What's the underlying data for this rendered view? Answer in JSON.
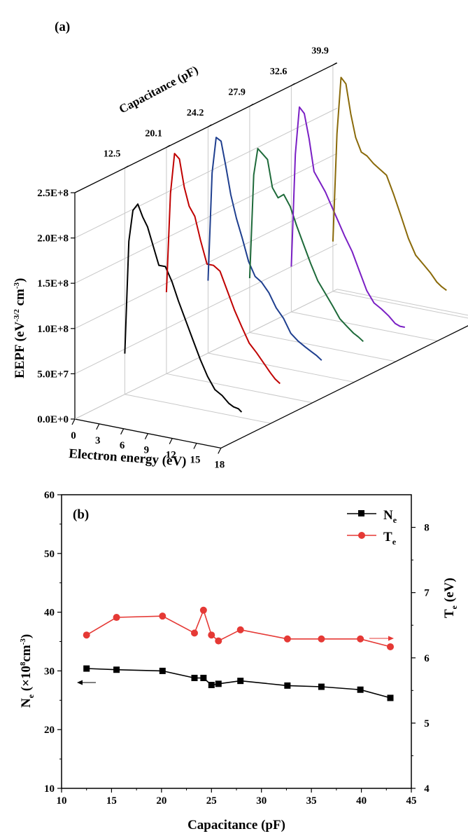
{
  "chart_data": [
    {
      "type": "line",
      "panel_label": "(a)",
      "projection": "3d-waterfall",
      "ylabel": "EEPF (eV-3/2 cm-3)",
      "ylabel_main": "EEPF (eV",
      "ylabel_sup1": "-3/2",
      "ylabel_mid": " cm",
      "ylabel_sup2": "-3",
      "ylabel_end": ")",
      "xlabel": "Electron energy (eV)",
      "zlabel": "Capacitance (pF)",
      "yticks": [
        "0.0E+0",
        "5.0E+7",
        "1.0E+8",
        "1.5E+8",
        "2.0E+8",
        "2.5E+8"
      ],
      "ytick_values": [
        0,
        50000000,
        100000000,
        150000000,
        200000000,
        250000000
      ],
      "ylim": [
        0,
        250000000
      ],
      "xticks": [
        "0",
        "3",
        "6",
        "9",
        "12",
        "15",
        "18"
      ],
      "xtick_values": [
        0,
        3,
        6,
        9,
        12,
        15,
        18
      ],
      "xlim": [
        0,
        18
      ],
      "zticks": [
        "12.5",
        "20.1",
        "24.2",
        "27.9",
        "32.6",
        "39.9"
      ],
      "series": [
        {
          "z": 12.5,
          "color": "#000000",
          "x": [
            0.0,
            0.5,
            1.0,
            1.6,
            2.2,
            2.8,
            3.5,
            4.2,
            5.0,
            5.8,
            6.6,
            7.5,
            8.4,
            9.3,
            10.2,
            11.1,
            12.0,
            12.8,
            13.4,
            14.0,
            14.4
          ],
          "y": [
            45000000,
            170000000,
            205000000,
            213000000,
            200000000,
            190000000,
            170000000,
            150000000,
            150000000,
            135000000,
            115000000,
            95000000,
            75000000,
            55000000,
            38000000,
            25000000,
            20000000,
            13000000,
            10000000,
            9000000,
            6000000
          ]
        },
        {
          "z": 20.1,
          "color": "#c00000",
          "x": [
            0.0,
            0.5,
            1.0,
            1.6,
            2.2,
            2.8,
            3.5,
            4.2,
            5.0,
            5.8,
            6.6,
            7.5,
            8.4,
            9.3,
            10.2,
            11.1,
            12.0,
            12.8,
            13.4,
            14.0
          ],
          "y": [
            90000000,
            200000000,
            245000000,
            240000000,
            210000000,
            190000000,
            180000000,
            155000000,
            130000000,
            130000000,
            125000000,
            105000000,
            85000000,
            68000000,
            52000000,
            43000000,
            33000000,
            24000000,
            18000000,
            14000000
          ]
        },
        {
          "z": 24.2,
          "color": "#1f3f8f",
          "x": [
            0.0,
            0.5,
            1.0,
            1.6,
            2.2,
            2.8,
            3.5,
            4.2,
            5.0,
            5.8,
            6.6,
            7.5,
            8.4,
            9.3,
            10.2,
            11.1,
            12.0,
            12.8,
            13.4,
            14.0
          ],
          "y": [
            80000000,
            200000000,
            240000000,
            237000000,
            210000000,
            180000000,
            155000000,
            135000000,
            110000000,
            95000000,
            90000000,
            80000000,
            65000000,
            55000000,
            40000000,
            33000000,
            28000000,
            24000000,
            21000000,
            17000000
          ]
        },
        {
          "z": 27.9,
          "color": "#1e6a3a",
          "x": [
            0.0,
            0.5,
            1.0,
            1.6,
            2.2,
            2.8,
            3.5,
            4.2,
            5.0,
            5.8,
            6.6,
            7.5,
            8.4,
            9.3,
            10.2,
            11.1,
            12.0,
            12.8,
            13.4,
            14.0
          ],
          "y": [
            60000000,
            175000000,
            205000000,
            200000000,
            195000000,
            165000000,
            155000000,
            160000000,
            148000000,
            128000000,
            110000000,
            90000000,
            72000000,
            60000000,
            48000000,
            35000000,
            28000000,
            22000000,
            19000000,
            15000000
          ]
        },
        {
          "z": 32.6,
          "color": "#7a1fc4",
          "x": [
            0.0,
            0.5,
            1.0,
            1.6,
            2.2,
            2.8,
            3.5,
            4.2,
            5.0,
            5.8,
            6.6,
            7.5,
            8.4,
            9.3,
            10.2,
            11.1,
            12.0,
            12.8,
            13.4,
            14.0
          ],
          "y": [
            50000000,
            175000000,
            228000000,
            222000000,
            195000000,
            160000000,
            150000000,
            140000000,
            125000000,
            110000000,
            95000000,
            80000000,
            60000000,
            40000000,
            28000000,
            23000000,
            17000000,
            10000000,
            8000000,
            8000000
          ]
        },
        {
          "z": 39.9,
          "color": "#8a6a0a",
          "x": [
            0.0,
            0.5,
            1.0,
            1.6,
            2.2,
            2.8,
            3.5,
            4.2,
            5.0,
            5.8,
            6.6,
            7.5,
            8.4,
            9.3,
            10.2,
            11.1,
            12.0,
            12.8,
            13.4,
            14.0
          ],
          "y": [
            55000000,
            175000000,
            238000000,
            232000000,
            200000000,
            175000000,
            160000000,
            157000000,
            150000000,
            145000000,
            140000000,
            120000000,
            98000000,
            75000000,
            58000000,
            50000000,
            42000000,
            33000000,
            29000000,
            26000000
          ]
        }
      ]
    },
    {
      "type": "line",
      "panel_label": "(b)",
      "xlabel": "Capacitance (pF)",
      "xlim": [
        10,
        45
      ],
      "xticks": [
        "10",
        "15",
        "20",
        "25",
        "30",
        "35",
        "40",
        "45"
      ],
      "xtick_values": [
        10,
        15,
        20,
        25,
        30,
        35,
        40,
        45
      ],
      "ylabel_left": "Ne (×10^8cm^-3)",
      "ylabel_left_main": "N",
      "ylabel_left_sub": "e",
      "ylabel_left_mid": " (×10",
      "ylabel_left_sup1": "8",
      "ylabel_left_unit": "cm",
      "ylabel_left_sup2": "-3",
      "ylabel_left_end": ")",
      "ylim_left": [
        10,
        60
      ],
      "yticks_left": [
        "10",
        "20",
        "30",
        "40",
        "50",
        "60"
      ],
      "ytick_values_left": [
        10,
        20,
        30,
        40,
        50,
        60
      ],
      "ylabel_right": "Te (eV)",
      "ylabel_right_main": "T",
      "ylabel_right_sub": "e",
      "ylabel_right_end": " (eV)",
      "ylim_right": [
        4,
        8.5
      ],
      "yticks_right": [
        "4",
        "5",
        "6",
        "7",
        "8"
      ],
      "ytick_values_right": [
        4,
        5,
        6,
        7,
        8
      ],
      "legend_position": "top-right",
      "series": [
        {
          "name": "Ne",
          "name_main": "N",
          "name_sub": "e",
          "axis": "left",
          "marker": "square",
          "color": "#000000",
          "x": [
            12.5,
            15.5,
            20.1,
            23.3,
            24.2,
            25.0,
            25.7,
            27.9,
            32.6,
            36.0,
            39.9,
            42.9
          ],
          "y": [
            30.4,
            30.2,
            30.0,
            28.8,
            28.8,
            27.6,
            27.8,
            28.3,
            27.5,
            27.3,
            26.8,
            25.4
          ]
        },
        {
          "name": "Te",
          "name_main": "T",
          "name_sub": "e",
          "axis": "right",
          "marker": "circle",
          "color": "#e53935",
          "x": [
            12.5,
            15.5,
            20.1,
            23.3,
            24.2,
            25.0,
            25.7,
            27.9,
            32.6,
            36.0,
            39.9,
            42.9
          ],
          "y": [
            6.35,
            6.62,
            6.64,
            6.38,
            6.73,
            6.35,
            6.26,
            6.43,
            6.29,
            6.29,
            6.29,
            6.17
          ]
        }
      ]
    }
  ]
}
